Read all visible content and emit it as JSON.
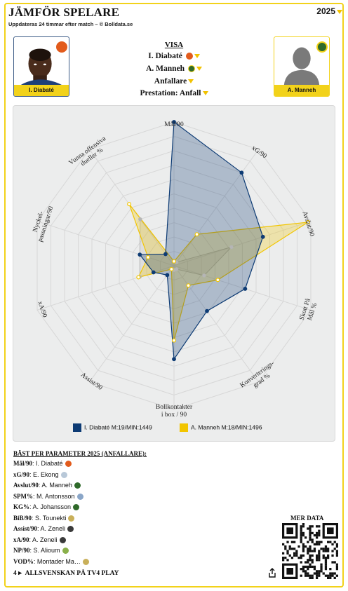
{
  "header": {
    "title": "JÄMFÖR SPELARE",
    "subtitle": "Uppdateras 24 timmar efter match – © Bolldata.se",
    "year": "2025"
  },
  "players": {
    "left": {
      "name": "I. Diabaté",
      "color": "#0d3b74"
    },
    "right": {
      "name": "A. Manneh",
      "color": "#f2c500"
    }
  },
  "visa": {
    "title": "VISA",
    "player1": "I. Diabaté",
    "player2": "A. Manneh",
    "position": "Anfallare",
    "performance": "Prestation: Anfall"
  },
  "chart_data": {
    "type": "radar",
    "axes": [
      "Mål/90",
      "xG/90",
      "Avslut/90",
      "Skott På Mål %",
      "Konverterings-grad %",
      "Bollkontakter i box / 90",
      "Assist/90",
      "xA/90",
      "Nyckel-passningar/90",
      "Vunna offensiva dueller %"
    ],
    "rmax": 10,
    "series": [
      {
        "name": "I. Diabaté M:19/MIN:1449",
        "color": "#0d3b74",
        "values": [
          10,
          8,
          6.5,
          5.2,
          3.9,
          6.5,
          0.8,
          1.5,
          2.5,
          1
        ]
      },
      {
        "name": "A. Manneh M:18/MIN:1496",
        "color": "#f2c500",
        "values": [
          0.3,
          2.7,
          9.8,
          3.2,
          1.7,
          5.2,
          0.3,
          2.6,
          1.9,
          5.3
        ]
      },
      {
        "name": "",
        "color": "#b5b5b5",
        "values": [
          0.3,
          0.3,
          4.2,
          2.2,
          0.3,
          0.3,
          0.3,
          2.5,
          2.5,
          4
        ]
      }
    ]
  },
  "best": {
    "title": "BÄST PER PARAMETER 2025 (ANFALLARE):",
    "rows": [
      {
        "param": "Mål/90",
        "player": "I. Diabaté"
      },
      {
        "param": "xG/90",
        "player": "E. Ekong"
      },
      {
        "param": "Avslut/90",
        "player": "A. Manneh"
      },
      {
        "param": "SPM%",
        "player": "M. Antonsson"
      },
      {
        "param": "KG%",
        "player": "A. Johansson"
      },
      {
        "param": "BiB/90",
        "player": "S. Tounekti"
      },
      {
        "param": "Assist/90",
        "player": "A. Zeneli"
      },
      {
        "param": "xA/90",
        "player": "A. Zeneli"
      },
      {
        "param": "NP/90",
        "player": "S. Alioum"
      },
      {
        "param": "VOD%",
        "player": "Montader Ma…"
      }
    ]
  },
  "mer_data": "MER DATA",
  "footer": {
    "channel_num": "4",
    "text": "ALLSVENSKAN PÅ TV4 PLAY"
  }
}
